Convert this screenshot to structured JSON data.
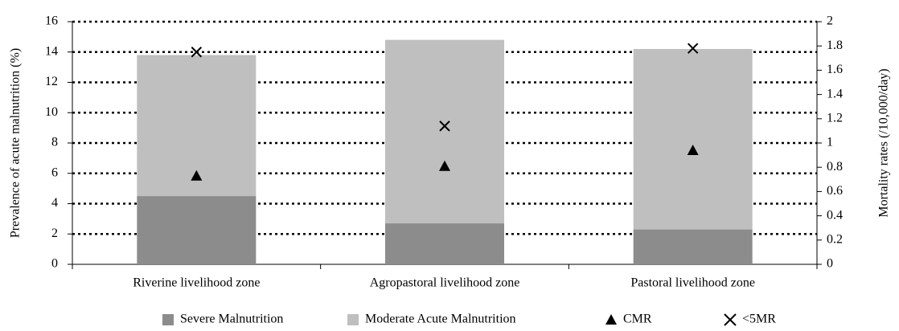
{
  "chart_data": {
    "type": "bar",
    "stacked": true,
    "ylabel": "Prevalence of acute malnutrition (%)",
    "y2label": "Mortality rates (/10,000/day)",
    "categories": [
      "Riverine livelihood zone",
      "Agropastoral livelihood zone",
      "Pastoral livelihood zone"
    ],
    "series": [
      {
        "name": "Severe Malnutrition",
        "color": "#8c8c8c",
        "values": [
          4.5,
          2.7,
          2.3
        ]
      },
      {
        "name": "Moderate Acute Malnutrition",
        "color": "#bfbfbf",
        "values": [
          9.3,
          12.1,
          11.9
        ]
      },
      {
        "name": "CMR",
        "color": "#000000",
        "marker": "triangle",
        "axis": "y2",
        "values": [
          0.73,
          0.81,
          0.94
        ]
      },
      {
        "name": "<5MR",
        "color": "#000000",
        "marker": "x",
        "axis": "y2",
        "values": [
          1.75,
          1.14,
          1.78
        ]
      }
    ],
    "ylim": [
      0,
      16
    ],
    "yticks": [
      0,
      2,
      4,
      6,
      8,
      10,
      12,
      14,
      16
    ],
    "y2lim": [
      0,
      2
    ],
    "y2ticks": [
      0,
      0.2,
      0.4,
      0.6,
      0.8,
      1,
      1.2,
      1.4,
      1.6,
      1.8,
      2
    ],
    "grid": true,
    "legend": "bottom"
  }
}
